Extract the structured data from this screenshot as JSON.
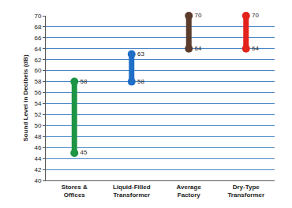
{
  "chart_data": {
    "type": "range",
    "y_label": "Sound Level in Decibels (dB)",
    "categories": [
      "Stores & Offices",
      "Liquid-Filled Transformer",
      "Average Factory",
      "Dry-Type Transformer"
    ],
    "low": [
      45,
      58,
      64,
      64
    ],
    "high": [
      58,
      63,
      70,
      70
    ],
    "colors": [
      "#1e9445",
      "#1f6fc6",
      "#5b3b2b",
      "#e3221c"
    ],
    "ylim": [
      40,
      70
    ],
    "yticks": [
      40,
      42,
      44,
      46,
      48,
      50,
      52,
      54,
      56,
      58,
      60,
      62,
      64,
      66,
      68,
      70
    ],
    "grid": true,
    "data_labels": true
  }
}
